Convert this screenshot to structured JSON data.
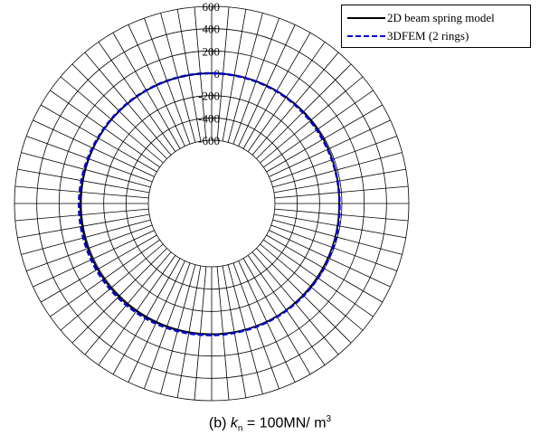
{
  "chart_data": {
    "type": "polar",
    "radial_ticks": [
      "600",
      "400",
      "200",
      "0",
      "-200",
      "-400",
      "-600"
    ],
    "radial_range": [
      -600,
      600
    ],
    "angular_divisions": 72,
    "grid": true,
    "legend_position": "top-right",
    "series": [
      {
        "name": "2D beam spring model",
        "color": "#000000",
        "style": "solid",
        "angles_deg": [
          0,
          30,
          60,
          90,
          120,
          150,
          180,
          210,
          240,
          270,
          300,
          330
        ],
        "values": [
          0,
          -2,
          -12,
          -25,
          -15,
          0,
          5,
          10,
          12,
          10,
          5,
          2
        ]
      },
      {
        "name": "3DFEM (2 rings)",
        "color": "#0000cc",
        "style": "dashed",
        "angles_deg": [
          0,
          30,
          60,
          90,
          120,
          150,
          180,
          210,
          240,
          270,
          300,
          330
        ],
        "values": [
          0,
          -6,
          -20,
          -22,
          -6,
          5,
          12,
          20,
          25,
          22,
          10,
          4
        ]
      }
    ]
  },
  "caption": {
    "prefix": "(b) ",
    "symbol": "k",
    "subscript": "n",
    "middle": " = 100MN/ m",
    "superscript": "3"
  }
}
